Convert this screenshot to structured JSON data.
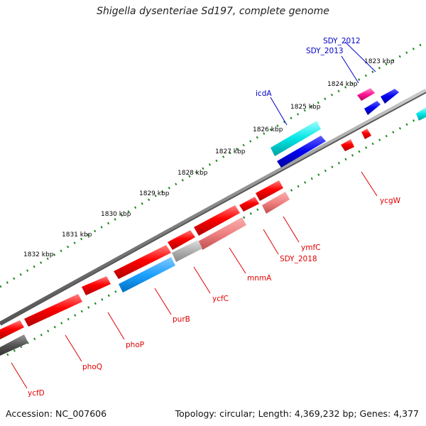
{
  "title": "Shigella dysenteriae Sd197, complete genome",
  "footer": {
    "accession": "Accession: NC_007606",
    "summary": "Topology: circular; Length: 4,369,232 bp; Genes: 4,377"
  },
  "map": {
    "kbp_ticks": [
      "1823 kbp",
      "1824 kbp",
      "1825 kbp",
      "1826 kbp",
      "1827 kbp",
      "1828 kbp",
      "1829 kbp",
      "1830 kbp",
      "1831 kbp",
      "1832 kbp"
    ],
    "genes": [
      {
        "name": "SDY_2012",
        "color": "blue-label"
      },
      {
        "name": "SDY_2013",
        "color": "blue-label"
      },
      {
        "name": "icdA",
        "color": "blue-label"
      },
      {
        "name": "ycgW",
        "color": "red-label"
      },
      {
        "name": "ymfC",
        "color": "red-label"
      },
      {
        "name": "SDY_2018",
        "color": "red-label"
      },
      {
        "name": "mnmA",
        "color": "red-label"
      },
      {
        "name": "ycfC",
        "color": "red-label"
      },
      {
        "name": "purB",
        "color": "red-label"
      },
      {
        "name": "phoP",
        "color": "red-label"
      },
      {
        "name": "phoQ",
        "color": "red-label"
      },
      {
        "name": "ycfD",
        "color": "red-label"
      }
    ],
    "colors": {
      "forward_strand": "#ff0000",
      "reverse_light": "#f08080",
      "blue_feature": "#0000ee",
      "cyan_feature": "#00e5e5",
      "magenta_feature": "#ff1493",
      "sky_feature": "#1ea0ff",
      "grey_feature": "#b0b0b0",
      "dark_feature": "#555555",
      "backbone": "#888888",
      "tick_green": "#1b8a1b"
    }
  }
}
